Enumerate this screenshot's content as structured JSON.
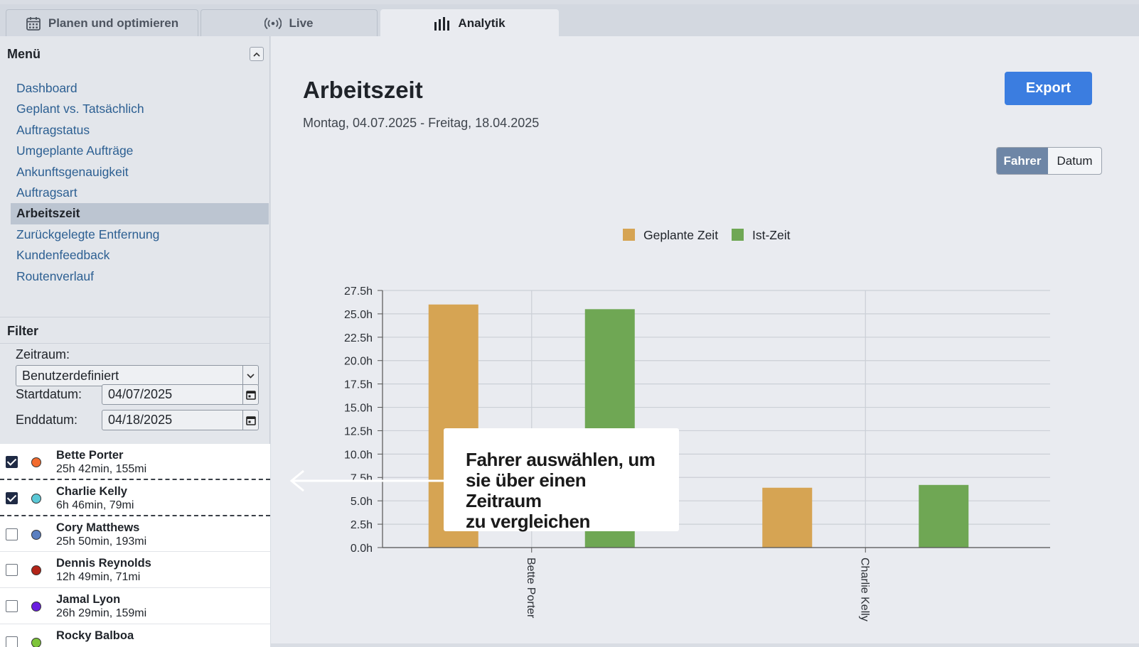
{
  "tabs": [
    {
      "label": "Planen und optimieren",
      "icon": "calendar-icon"
    },
    {
      "label": "Live",
      "icon": "broadcast-icon"
    },
    {
      "label": "Analytik",
      "icon": "bar-chart-icon",
      "active": true
    }
  ],
  "sidebar": {
    "menu_title": "Menü",
    "items": [
      {
        "label": "Dashboard"
      },
      {
        "label": "Geplant vs. Tatsächlich"
      },
      {
        "label": "Auftragstatus"
      },
      {
        "label": "Umgeplante Aufträge"
      },
      {
        "label": "Ankunftsgenauigkeit"
      },
      {
        "label": "Auftragsart"
      },
      {
        "label": "Arbeitszeit",
        "active": true
      },
      {
        "label": "Zurückgelegte Entfernung"
      },
      {
        "label": "Kundenfeedback"
      },
      {
        "label": "Routenverlauf"
      }
    ],
    "filter": {
      "title": "Filter",
      "zeitraum_label": "Zeitraum:",
      "zeitraum_value": "Benutzerdefiniert",
      "start_label": "Startdatum:",
      "start_value": "04/07/2025",
      "end_label": "Enddatum:",
      "end_value": "04/18/2025"
    },
    "drivers": [
      {
        "name": "Bette Porter",
        "info": "25h 42min, 155mi",
        "checked": true,
        "color": "#f26b2e"
      },
      {
        "name": "Charlie Kelly",
        "info": "6h 46min, 79mi",
        "checked": true,
        "color": "#5bc8d6"
      },
      {
        "name": "Cory Matthews",
        "info": "25h 50min, 193mi",
        "checked": false,
        "color": "#5a7fc0"
      },
      {
        "name": "Dennis Reynolds",
        "info": "12h 49min, 71mi",
        "checked": false,
        "color": "#b32418"
      },
      {
        "name": "Jamal Lyon",
        "info": "26h 29min, 159mi",
        "checked": false,
        "color": "#6a1fe0"
      },
      {
        "name": "Rocky Balboa",
        "info": "",
        "checked": false,
        "color": "#7ec43a"
      }
    ]
  },
  "main": {
    "title": "Arbeitszeit",
    "date_range": "Montag, 04.07.2025 - Freitag, 18.04.2025",
    "export_label": "Export",
    "toggle": {
      "a": "Fahrer",
      "b": "Datum"
    },
    "callout": [
      "Fahrer auswählen, um",
      "sie über einen Zeitraum",
      "zu vergleichen"
    ]
  },
  "chart_data": {
    "type": "bar",
    "categories": [
      "Bette Porter",
      "Charlie Kelly"
    ],
    "series": [
      {
        "name": "Geplante Zeit",
        "values": [
          26.0,
          6.4
        ],
        "color": "#d6a453"
      },
      {
        "name": "Ist-Zeit",
        "values": [
          25.5,
          6.7
        ],
        "color": "#6fa754"
      }
    ],
    "ylim": [
      0,
      27.5
    ],
    "yticks": [
      "0.0h",
      "2.5h",
      "5.0h",
      "7.5h",
      "10.0h",
      "12.5h",
      "15.0h",
      "17.5h",
      "20.0h",
      "22.5h",
      "25.0h",
      "27.5h"
    ],
    "grid": true,
    "legend": "top-center"
  }
}
